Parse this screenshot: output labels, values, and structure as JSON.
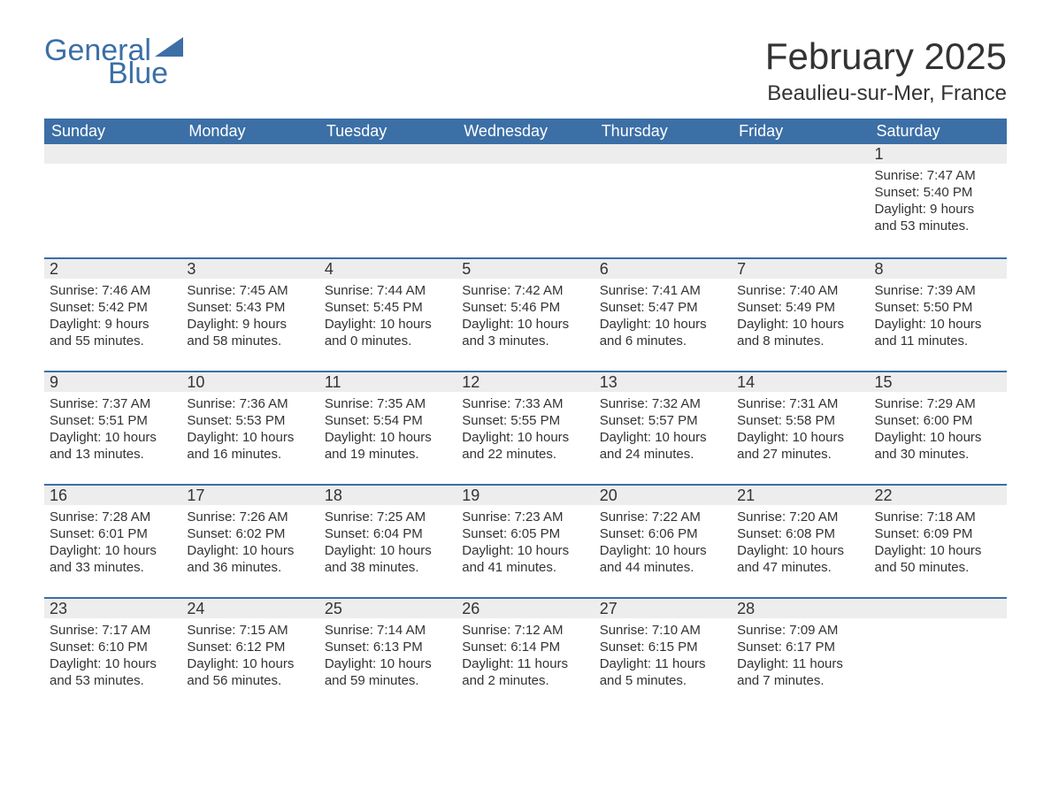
{
  "logo": {
    "text_general": "General",
    "text_blue": "Blue",
    "triangle_color": "#3b6fa6"
  },
  "title": "February 2025",
  "location": "Beaulieu-sur-Mer, France",
  "colors": {
    "header_bg": "#3b6fa6",
    "header_text": "#ffffff",
    "daynum_bg": "#ededed",
    "row_border": "#3b6fa6",
    "body_text": "#333333",
    "page_bg": "#ffffff"
  },
  "fonts": {
    "title_size_pt": 32,
    "location_size_pt": 18,
    "header_size_pt": 14,
    "daynum_size_pt": 14,
    "detail_size_pt": 11
  },
  "weekdays": [
    "Sunday",
    "Monday",
    "Tuesday",
    "Wednesday",
    "Thursday",
    "Friday",
    "Saturday"
  ],
  "weeks": [
    [
      null,
      null,
      null,
      null,
      null,
      null,
      {
        "day": "1",
        "sunrise": "Sunrise: 7:47 AM",
        "sunset": "Sunset: 5:40 PM",
        "daylight1": "Daylight: 9 hours",
        "daylight2": "and 53 minutes."
      }
    ],
    [
      {
        "day": "2",
        "sunrise": "Sunrise: 7:46 AM",
        "sunset": "Sunset: 5:42 PM",
        "daylight1": "Daylight: 9 hours",
        "daylight2": "and 55 minutes."
      },
      {
        "day": "3",
        "sunrise": "Sunrise: 7:45 AM",
        "sunset": "Sunset: 5:43 PM",
        "daylight1": "Daylight: 9 hours",
        "daylight2": "and 58 minutes."
      },
      {
        "day": "4",
        "sunrise": "Sunrise: 7:44 AM",
        "sunset": "Sunset: 5:45 PM",
        "daylight1": "Daylight: 10 hours",
        "daylight2": "and 0 minutes."
      },
      {
        "day": "5",
        "sunrise": "Sunrise: 7:42 AM",
        "sunset": "Sunset: 5:46 PM",
        "daylight1": "Daylight: 10 hours",
        "daylight2": "and 3 minutes."
      },
      {
        "day": "6",
        "sunrise": "Sunrise: 7:41 AM",
        "sunset": "Sunset: 5:47 PM",
        "daylight1": "Daylight: 10 hours",
        "daylight2": "and 6 minutes."
      },
      {
        "day": "7",
        "sunrise": "Sunrise: 7:40 AM",
        "sunset": "Sunset: 5:49 PM",
        "daylight1": "Daylight: 10 hours",
        "daylight2": "and 8 minutes."
      },
      {
        "day": "8",
        "sunrise": "Sunrise: 7:39 AM",
        "sunset": "Sunset: 5:50 PM",
        "daylight1": "Daylight: 10 hours",
        "daylight2": "and 11 minutes."
      }
    ],
    [
      {
        "day": "9",
        "sunrise": "Sunrise: 7:37 AM",
        "sunset": "Sunset: 5:51 PM",
        "daylight1": "Daylight: 10 hours",
        "daylight2": "and 13 minutes."
      },
      {
        "day": "10",
        "sunrise": "Sunrise: 7:36 AM",
        "sunset": "Sunset: 5:53 PM",
        "daylight1": "Daylight: 10 hours",
        "daylight2": "and 16 minutes."
      },
      {
        "day": "11",
        "sunrise": "Sunrise: 7:35 AM",
        "sunset": "Sunset: 5:54 PM",
        "daylight1": "Daylight: 10 hours",
        "daylight2": "and 19 minutes."
      },
      {
        "day": "12",
        "sunrise": "Sunrise: 7:33 AM",
        "sunset": "Sunset: 5:55 PM",
        "daylight1": "Daylight: 10 hours",
        "daylight2": "and 22 minutes."
      },
      {
        "day": "13",
        "sunrise": "Sunrise: 7:32 AM",
        "sunset": "Sunset: 5:57 PM",
        "daylight1": "Daylight: 10 hours",
        "daylight2": "and 24 minutes."
      },
      {
        "day": "14",
        "sunrise": "Sunrise: 7:31 AM",
        "sunset": "Sunset: 5:58 PM",
        "daylight1": "Daylight: 10 hours",
        "daylight2": "and 27 minutes."
      },
      {
        "day": "15",
        "sunrise": "Sunrise: 7:29 AM",
        "sunset": "Sunset: 6:00 PM",
        "daylight1": "Daylight: 10 hours",
        "daylight2": "and 30 minutes."
      }
    ],
    [
      {
        "day": "16",
        "sunrise": "Sunrise: 7:28 AM",
        "sunset": "Sunset: 6:01 PM",
        "daylight1": "Daylight: 10 hours",
        "daylight2": "and 33 minutes."
      },
      {
        "day": "17",
        "sunrise": "Sunrise: 7:26 AM",
        "sunset": "Sunset: 6:02 PM",
        "daylight1": "Daylight: 10 hours",
        "daylight2": "and 36 minutes."
      },
      {
        "day": "18",
        "sunrise": "Sunrise: 7:25 AM",
        "sunset": "Sunset: 6:04 PM",
        "daylight1": "Daylight: 10 hours",
        "daylight2": "and 38 minutes."
      },
      {
        "day": "19",
        "sunrise": "Sunrise: 7:23 AM",
        "sunset": "Sunset: 6:05 PM",
        "daylight1": "Daylight: 10 hours",
        "daylight2": "and 41 minutes."
      },
      {
        "day": "20",
        "sunrise": "Sunrise: 7:22 AM",
        "sunset": "Sunset: 6:06 PM",
        "daylight1": "Daylight: 10 hours",
        "daylight2": "and 44 minutes."
      },
      {
        "day": "21",
        "sunrise": "Sunrise: 7:20 AM",
        "sunset": "Sunset: 6:08 PM",
        "daylight1": "Daylight: 10 hours",
        "daylight2": "and 47 minutes."
      },
      {
        "day": "22",
        "sunrise": "Sunrise: 7:18 AM",
        "sunset": "Sunset: 6:09 PM",
        "daylight1": "Daylight: 10 hours",
        "daylight2": "and 50 minutes."
      }
    ],
    [
      {
        "day": "23",
        "sunrise": "Sunrise: 7:17 AM",
        "sunset": "Sunset: 6:10 PM",
        "daylight1": "Daylight: 10 hours",
        "daylight2": "and 53 minutes."
      },
      {
        "day": "24",
        "sunrise": "Sunrise: 7:15 AM",
        "sunset": "Sunset: 6:12 PM",
        "daylight1": "Daylight: 10 hours",
        "daylight2": "and 56 minutes."
      },
      {
        "day": "25",
        "sunrise": "Sunrise: 7:14 AM",
        "sunset": "Sunset: 6:13 PM",
        "daylight1": "Daylight: 10 hours",
        "daylight2": "and 59 minutes."
      },
      {
        "day": "26",
        "sunrise": "Sunrise: 7:12 AM",
        "sunset": "Sunset: 6:14 PM",
        "daylight1": "Daylight: 11 hours",
        "daylight2": "and 2 minutes."
      },
      {
        "day": "27",
        "sunrise": "Sunrise: 7:10 AM",
        "sunset": "Sunset: 6:15 PM",
        "daylight1": "Daylight: 11 hours",
        "daylight2": "and 5 minutes."
      },
      {
        "day": "28",
        "sunrise": "Sunrise: 7:09 AM",
        "sunset": "Sunset: 6:17 PM",
        "daylight1": "Daylight: 11 hours",
        "daylight2": "and 7 minutes."
      },
      null
    ]
  ]
}
